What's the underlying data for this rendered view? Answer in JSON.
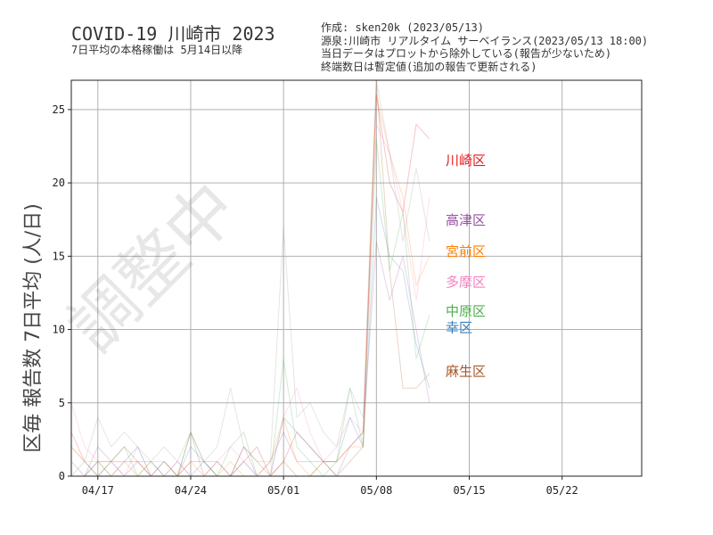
{
  "header": {
    "title": "COVID-19 川崎市 2023",
    "subtitle": "7日平均の本格稼働は 5月14日以降"
  },
  "meta": {
    "lines": [
      "作成: sken20k (2023/05/13)",
      "源泉:川崎市 リアルタイム サーベイランス(2023/05/13 18:00)",
      "当日データはプロットから除外している(報告が少ないため)",
      "終端数日は暫定値(追加の報告で更新される)"
    ]
  },
  "watermark": "調整中",
  "chart_data": {
    "type": "line",
    "ylabel": "区毎 報告数 7日平均 (人/日)",
    "ylim": [
      0,
      27
    ],
    "yticks": [
      0,
      5,
      10,
      15,
      20,
      25
    ],
    "x_range": [
      "2023-04-15",
      "2023-05-28"
    ],
    "xticks": [
      {
        "date": "2023-04-17",
        "label": "04/17"
      },
      {
        "date": "2023-04-24",
        "label": "04/24"
      },
      {
        "date": "2023-05-01",
        "label": "05/01"
      },
      {
        "date": "2023-05-08",
        "label": "05/08"
      },
      {
        "date": "2023-05-15",
        "label": "05/15"
      },
      {
        "date": "2023-05-22",
        "label": "05/22"
      }
    ],
    "grid": true,
    "dates": [
      "2023-04-15",
      "2023-04-16",
      "2023-04-17",
      "2023-04-18",
      "2023-04-19",
      "2023-04-20",
      "2023-04-21",
      "2023-04-22",
      "2023-04-23",
      "2023-04-24",
      "2023-04-25",
      "2023-04-26",
      "2023-04-27",
      "2023-04-28",
      "2023-04-29",
      "2023-04-30",
      "2023-05-01",
      "2023-05-02",
      "2023-05-03",
      "2023-05-04",
      "2023-05-05",
      "2023-05-06",
      "2023-05-07",
      "2023-05-08",
      "2023-05-09",
      "2023-05-10",
      "2023-05-11",
      "2023-05-12"
    ],
    "series": [
      {
        "name": "川崎区",
        "color": "#e41a1c",
        "values": [
          3,
          1,
          0,
          1,
          1,
          1,
          0,
          0,
          0,
          1,
          1,
          0,
          0,
          1,
          2,
          0,
          1,
          3,
          2,
          1,
          1,
          2,
          3,
          26,
          20,
          18,
          24,
          23
        ]
      },
      {
        "name": "幸区",
        "color": "#377eb8",
        "values": [
          0,
          0,
          1,
          0,
          1,
          2,
          0,
          1,
          0,
          2,
          1,
          0,
          0,
          1,
          0,
          0,
          4,
          3,
          2,
          1,
          1,
          4,
          2,
          19,
          15,
          14,
          9,
          6
        ]
      },
      {
        "name": "中原区",
        "color": "#4daf4a",
        "values": [
          0,
          1,
          0,
          1,
          2,
          0,
          1,
          0,
          0,
          3,
          1,
          0,
          2,
          3,
          0,
          0,
          8,
          2,
          1,
          0,
          1,
          6,
          2,
          23,
          14,
          18,
          8,
          11
        ]
      },
      {
        "name": "高津区",
        "color": "#984ea3",
        "values": [
          1,
          0,
          2,
          1,
          0,
          1,
          1,
          0,
          1,
          0,
          1,
          1,
          0,
          2,
          0,
          1,
          3,
          1,
          1,
          1,
          0,
          2,
          3,
          16,
          12,
          15,
          10,
          5
        ]
      },
      {
        "name": "宮前区",
        "color": "#ff7f00",
        "values": [
          2,
          1,
          1,
          0,
          1,
          0,
          1,
          1,
          0,
          1,
          0,
          0,
          1,
          0,
          0,
          1,
          4,
          1,
          0,
          1,
          1,
          2,
          2,
          26,
          22,
          19,
          13,
          15
        ]
      },
      {
        "name": "多摩区",
        "color": "#f781bf",
        "values": [
          5,
          2,
          1,
          1,
          0,
          2,
          0,
          0,
          1,
          0,
          0,
          1,
          2,
          1,
          0,
          0,
          4,
          6,
          3,
          1,
          2,
          4,
          3,
          24,
          22,
          18,
          12,
          19
        ]
      },
      {
        "name": "麻生区",
        "color": "#a65628",
        "values": [
          0,
          0,
          1,
          1,
          2,
          1,
          0,
          1,
          0,
          3,
          0,
          1,
          0,
          2,
          1,
          0,
          1,
          0,
          0,
          1,
          0,
          1,
          2,
          27,
          14,
          6,
          6,
          7
        ]
      },
      {
        "name": "",
        "color": "#999999",
        "values": [
          2,
          1,
          4,
          2,
          3,
          2,
          1,
          2,
          1,
          3,
          1,
          2,
          6,
          2,
          1,
          1,
          17,
          4,
          5,
          3,
          2,
          6,
          4,
          27,
          22,
          16,
          21,
          16
        ]
      }
    ],
    "legend": [
      {
        "label": "川崎区",
        "color": "#e41a1c",
        "y": 21.6
      },
      {
        "label": "高津区",
        "color": "#984ea3",
        "y": 17.5
      },
      {
        "label": "宮前区",
        "color": "#ff7f00",
        "y": 15.4
      },
      {
        "label": "多摩区",
        "color": "#f781bf",
        "y": 13.3
      },
      {
        "label": "中原区",
        "color": "#4daf4a",
        "y": 11.3
      },
      {
        "label": "幸区",
        "color": "#377eb8",
        "y": 10.2
      },
      {
        "label": "麻生区",
        "color": "#a65628",
        "y": 7.2
      }
    ]
  }
}
